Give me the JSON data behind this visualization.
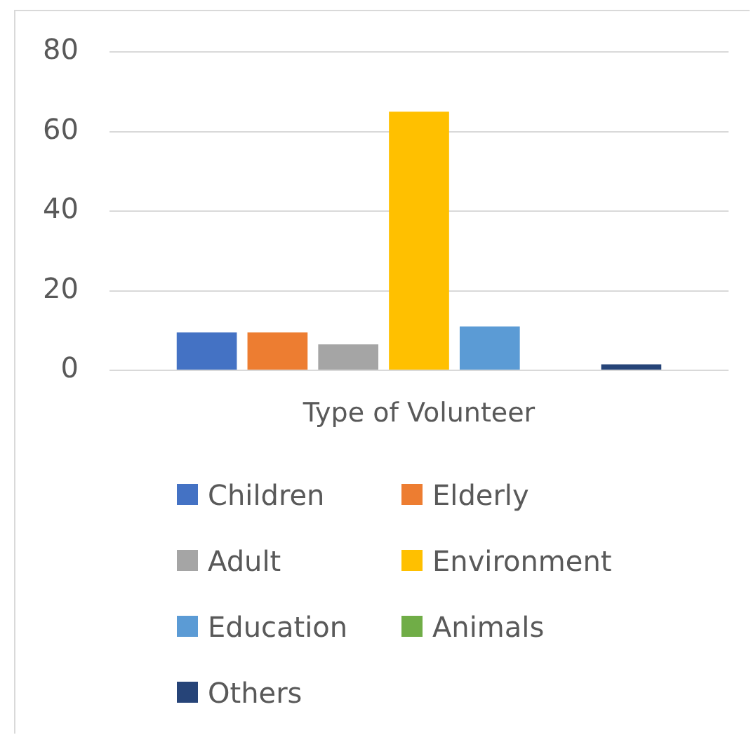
{
  "chart_data": {
    "type": "bar",
    "categories": [
      "Type of Volunteer"
    ],
    "series": [
      {
        "name": "Children",
        "color": "#4472c4",
        "values": [
          9.5
        ]
      },
      {
        "name": "Elderly",
        "color": "#ed7d31",
        "values": [
          9.5
        ]
      },
      {
        "name": "Adult",
        "color": "#a5a5a5",
        "values": [
          6.5
        ]
      },
      {
        "name": "Environment",
        "color": "#ffc000",
        "values": [
          65
        ]
      },
      {
        "name": "Education",
        "color": "#5b9bd5",
        "values": [
          11
        ]
      },
      {
        "name": "Animals",
        "color": "#70ad47",
        "values": [
          0
        ]
      },
      {
        "name": "Others",
        "color": "#264478",
        "values": [
          1.5
        ]
      }
    ],
    "ylim": [
      0,
      80
    ],
    "yticks": [
      0,
      20,
      40,
      60,
      80
    ],
    "grid": "y",
    "legend": "bottom"
  }
}
